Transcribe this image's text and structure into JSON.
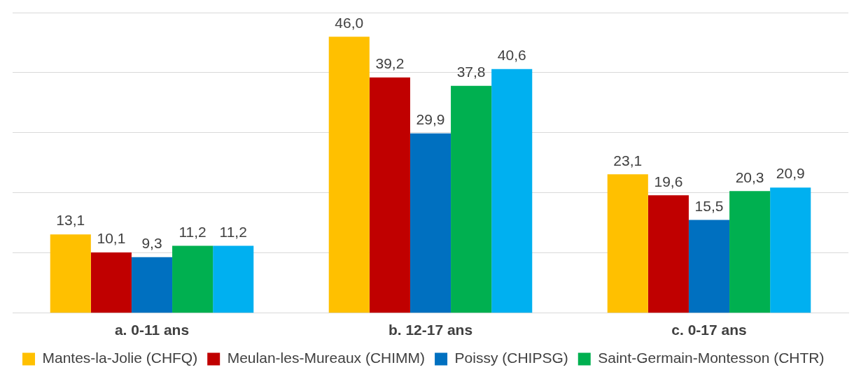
{
  "chart_data": {
    "type": "bar",
    "categories": [
      "a. 0-11 ans",
      "b. 12-17 ans",
      "c. 0-17 ans"
    ],
    "series": [
      {
        "name": "Mantes-la-Jolie (CHFQ)",
        "color": "#ffc000",
        "values": [
          13.1,
          46.0,
          23.1
        ],
        "value_labels": [
          "13,1",
          "46,0",
          "23,1"
        ]
      },
      {
        "name": "Meulan-les-Mureaux (CHIMM)",
        "color": "#c00000",
        "values": [
          10.1,
          39.2,
          19.6
        ],
        "value_labels": [
          "10,1",
          "39,2",
          "19,6"
        ]
      },
      {
        "name": "Poissy (CHIPSG)",
        "color": "#0070c0",
        "values": [
          9.3,
          29.9,
          15.5
        ],
        "value_labels": [
          "9,3",
          "29,9",
          "15,5"
        ]
      },
      {
        "name": "Saint-Germain-Montesson (CHTR)",
        "color": "#00b050",
        "values": [
          11.2,
          37.8,
          20.3
        ],
        "value_labels": [
          "11,2",
          "37,8",
          "20,3"
        ]
      },
      {
        "color": "#00b0f0",
        "values": [
          11.2,
          40.6,
          20.9
        ],
        "value_labels": [
          "11,2",
          "40,6",
          "20,9"
        ]
      }
    ],
    "ylim": [
      0,
      50
    ],
    "yticks": [
      {
        "value": 0,
        "label": null
      },
      {
        "value": 10,
        "label": null
      },
      {
        "value": 20,
        "label": null
      },
      {
        "value": 30,
        "label": null
      },
      {
        "value": 40,
        "label": null
      },
      {
        "value": 50,
        "label": null
      }
    ],
    "tick_labels": "x",
    "grid": "y",
    "legend": "bottom"
  }
}
